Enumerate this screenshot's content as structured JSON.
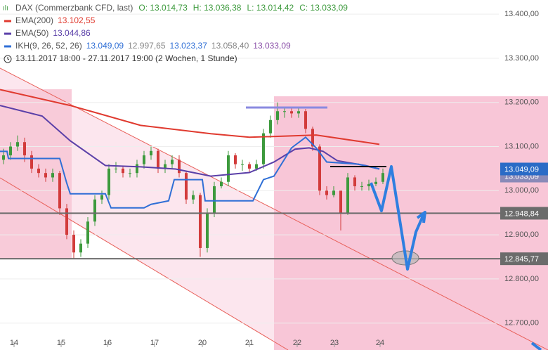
{
  "chart_data": {
    "type": "candlestick",
    "title": "DAX (Commerzbank CFD, last)",
    "ohlc_labels": [
      "O: 13.014,73",
      "H: 13.036,38",
      "L: 13.014,42",
      "C: 13.033,09"
    ],
    "period": "13.11.2017 18:00 - 27.11.2017 19:00  (2 Wochen, 1 Stunde)",
    "xlim": [
      -0.5,
      70.5
    ],
    "ylim": [
      12639,
      13432
    ],
    "xticks": [
      {
        "value": 1.5,
        "label": "14"
      },
      {
        "value": 8.2,
        "label": "15"
      },
      {
        "value": 14.8,
        "label": "16"
      },
      {
        "value": 21.5,
        "label": "17"
      },
      {
        "value": 28.3,
        "label": "20"
      },
      {
        "value": 35,
        "label": "21"
      },
      {
        "value": 41.8,
        "label": "22"
      },
      {
        "value": 47.1,
        "label": "23"
      },
      {
        "value": 53.6,
        "label": "24"
      }
    ],
    "yticks": [
      {
        "value": 13400,
        "label": "13.400,00"
      },
      {
        "value": 13300,
        "label": "13.300,00"
      },
      {
        "value": 13200,
        "label": "13.200,00"
      },
      {
        "value": 13100,
        "label": "13.100,00"
      },
      {
        "value": 13000,
        "label": "13.000,00"
      },
      {
        "value": 12900,
        "label": "12.900,00"
      },
      {
        "value": 12800,
        "label": "12.800,00"
      },
      {
        "value": 12700,
        "label": "12.700,00"
      }
    ],
    "candles": {
      "up_color": "#3d9a3d",
      "down_color": "#d23b3b",
      "open": [
        13070,
        13080,
        13100,
        13110,
        13080,
        13050,
        13040,
        13030,
        13040,
        12960,
        12900,
        12860,
        12880,
        12930,
        12980,
        12990,
        13050,
        13050,
        13040,
        13040,
        13060,
        13080,
        13090,
        13050,
        13060,
        13070,
        13040,
        12980,
        12990,
        12870,
        12950,
        13010,
        13020,
        13080,
        13060,
        13060,
        13050,
        13060,
        13130,
        13160,
        13180,
        13180,
        13175,
        13180,
        13140,
        13100,
        13000,
        12990,
        13000,
        12950,
        13030,
        13010,
        13010,
        13015,
        13020
      ],
      "high": [
        13095,
        13110,
        13125,
        13120,
        13090,
        13060,
        13050,
        13050,
        13045,
        12970,
        12910,
        12890,
        12940,
        12990,
        13000,
        13060,
        13065,
        13055,
        13050,
        13070,
        13090,
        13100,
        13095,
        13070,
        13080,
        13080,
        13045,
        13000,
        12995,
        12960,
        13020,
        13030,
        13090,
        13085,
        13070,
        13065,
        13070,
        13140,
        13170,
        13200,
        13190,
        13190,
        13190,
        13185,
        13145,
        13105,
        13010,
        13010,
        12995,
        13040,
        13035,
        13020,
        13025,
        13030,
        13050
      ],
      "low": [
        13060,
        13070,
        13090,
        13065,
        13040,
        13030,
        13020,
        13020,
        12945,
        12890,
        12845,
        12850,
        12870,
        12920,
        12970,
        12980,
        13040,
        13030,
        13030,
        13030,
        13050,
        13070,
        13040,
        13040,
        13050,
        13030,
        12970,
        12970,
        12850,
        12860,
        12940,
        13005,
        13010,
        13050,
        13045,
        13040,
        13045,
        13050,
        13120,
        13150,
        13165,
        13165,
        13165,
        13130,
        13090,
        12990,
        12980,
        12985,
        12910,
        12945,
        13000,
        13000,
        13000,
        13010,
        13015
      ],
      "close": [
        13080,
        13100,
        13110,
        13080,
        13050,
        13040,
        13030,
        13040,
        12960,
        12900,
        12860,
        12880,
        12930,
        12980,
        12990,
        13050,
        13050,
        13040,
        13040,
        13060,
        13080,
        13090,
        13050,
        13060,
        13070,
        13040,
        12980,
        12990,
        12870,
        12950,
        13010,
        13020,
        13080,
        13060,
        13060,
        13050,
        13060,
        13130,
        13160,
        13180,
        13180,
        13175,
        13180,
        13140,
        13100,
        13000,
        12990,
        13000,
        12950,
        13030,
        13010,
        13010,
        13015,
        13020,
        13040
      ]
    },
    "series": [
      {
        "name": "EMA(200)",
        "color": "#e03a2f",
        "legend_values": [
          "13.102,55"
        ],
        "x": [
          -0.5,
          9.5,
          19.5,
          29.5,
          35,
          44.5,
          53.5
        ],
        "values": [
          13229,
          13193,
          13148,
          13129,
          13121,
          13126,
          13105
        ]
      },
      {
        "name": "EMA(50)",
        "color": "#5a3fa8",
        "legend_values": [
          "13.044,86"
        ],
        "x": [
          -0.5,
          5.5,
          9.5,
          14.5,
          19.5,
          24.5,
          29.5,
          35,
          38.5,
          41.5,
          43.5,
          45.5,
          47.5,
          51.5,
          53.5
        ],
        "values": [
          13193,
          13169,
          13113,
          13057,
          13054,
          13049,
          13033,
          13041,
          13065,
          13094,
          13097,
          13089,
          13068,
          13057,
          13049
        ]
      },
      {
        "name": "IKH(9, 26, 52, 26)",
        "color": "#2f6fd6",
        "legend_values": [
          "13.049,09",
          "12.997,65",
          "13.023,37",
          "13.058,40",
          "13.033,09"
        ],
        "x": [
          -0.5,
          0.5,
          0.7,
          8,
          9,
          9.5,
          14.5,
          15.3,
          20,
          21,
          23.5,
          24.3,
          28.3,
          28.7,
          35.5,
          37,
          38.5,
          41,
          43,
          44.5,
          46,
          50.5,
          53.5
        ],
        "values": [
          13089,
          13089,
          13073,
          13073,
          13017,
          12993,
          12993,
          12961,
          12961,
          12969,
          12977,
          13025,
          13025,
          12977,
          12977,
          13025,
          13033,
          13097,
          13121,
          13097,
          13065,
          13060,
          13049
        ]
      }
    ],
    "price_lines": [
      {
        "value": 12948.84,
        "label": "12.948,84",
        "color": "#6b6b6b"
      },
      {
        "value": 12845.77,
        "label": "12.845,77",
        "color": "#6b6b6b"
      }
    ],
    "price_tags": [
      {
        "value": 13033.09,
        "label": "13.033,09",
        "color": "#8a8ab8"
      },
      {
        "value": 13049.09,
        "label": "13.049,09",
        "color": "#2a6bc6"
      }
    ]
  }
}
